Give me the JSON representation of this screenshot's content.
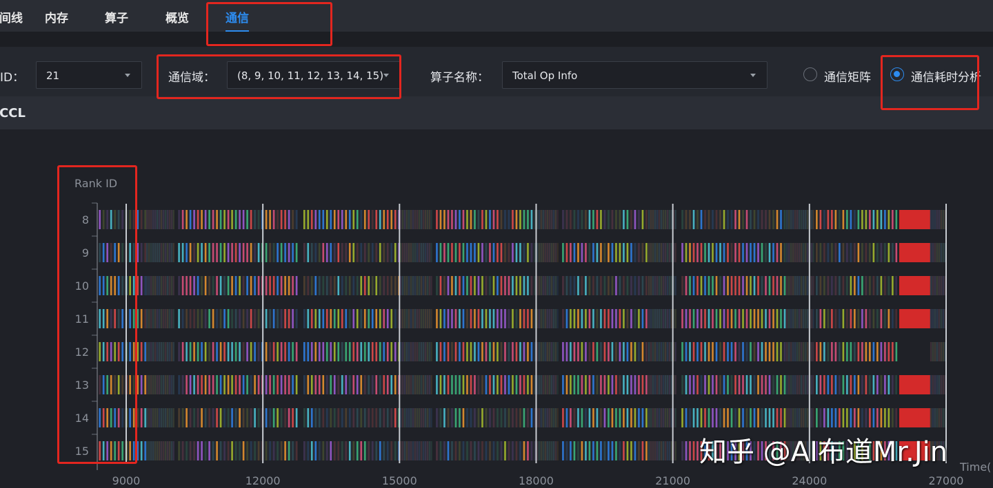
{
  "tabs": [
    {
      "label": "时间线",
      "active": false
    },
    {
      "label": "内存",
      "active": false
    },
    {
      "label": "算子",
      "active": false
    },
    {
      "label": "概览",
      "active": false
    },
    {
      "label": "通信",
      "active": true
    }
  ],
  "filters": {
    "iteration_label": "迭代ID：",
    "iteration_value": "21",
    "domain_label": "通信域：",
    "domain_value": "(8, 9, 10, 11, 12, 13, 14, 15)",
    "op_label": "算子名称：",
    "op_value": "Total Op Info",
    "radio_matrix": "通信矩阵",
    "radio_duration": "通信耗时分析",
    "selected": "通信耗时分析"
  },
  "section_title": "HCCL",
  "watermark": "知乎 @AI布道Mr.Jin",
  "colors": {
    "accent": "#2d8cf0",
    "annotation": "#e3261f",
    "block": "#d42a2a"
  },
  "chart_data": {
    "type": "timeline",
    "ylabel": "Rank ID",
    "xlabel": "Time(",
    "categories": [
      "8",
      "9",
      "10",
      "11",
      "12",
      "13",
      "14",
      "15"
    ],
    "xticks": [
      9000,
      12000,
      15000,
      18000,
      21000,
      24000,
      27000
    ],
    "xlim": [
      8365,
      27000
    ],
    "grid": "vertical",
    "segments": [
      {
        "start": 8400,
        "end": 9440,
        "kind": "dense"
      },
      {
        "start": 9440,
        "end": 10050,
        "kind": "faint"
      },
      {
        "start": 10140,
        "end": 12770,
        "kind": "dense"
      },
      {
        "start": 12890,
        "end": 14980,
        "kind": "dense"
      },
      {
        "start": 15010,
        "end": 15700,
        "kind": "faint"
      },
      {
        "start": 15800,
        "end": 17960,
        "kind": "dense"
      },
      {
        "start": 17960,
        "end": 18460,
        "kind": "faint"
      },
      {
        "start": 18570,
        "end": 20460,
        "kind": "dense"
      },
      {
        "start": 20460,
        "end": 21070,
        "kind": "faint"
      },
      {
        "start": 21190,
        "end": 23490,
        "kind": "dense"
      },
      {
        "start": 23490,
        "end": 24090,
        "kind": "faint"
      },
      {
        "start": 24140,
        "end": 25910,
        "kind": "dense"
      },
      {
        "start": 25970,
        "end": 26650,
        "kind": "block"
      },
      {
        "start": 26650,
        "end": 27000,
        "kind": "faint"
      }
    ],
    "ranks_without_block": [
      "12"
    ],
    "palette": [
      "#2f7de1",
      "#e8912d",
      "#9b59d0",
      "#3cb37a",
      "#d94f7a",
      "#a3b82c",
      "#4bc0d0",
      "#e04a4a"
    ]
  }
}
